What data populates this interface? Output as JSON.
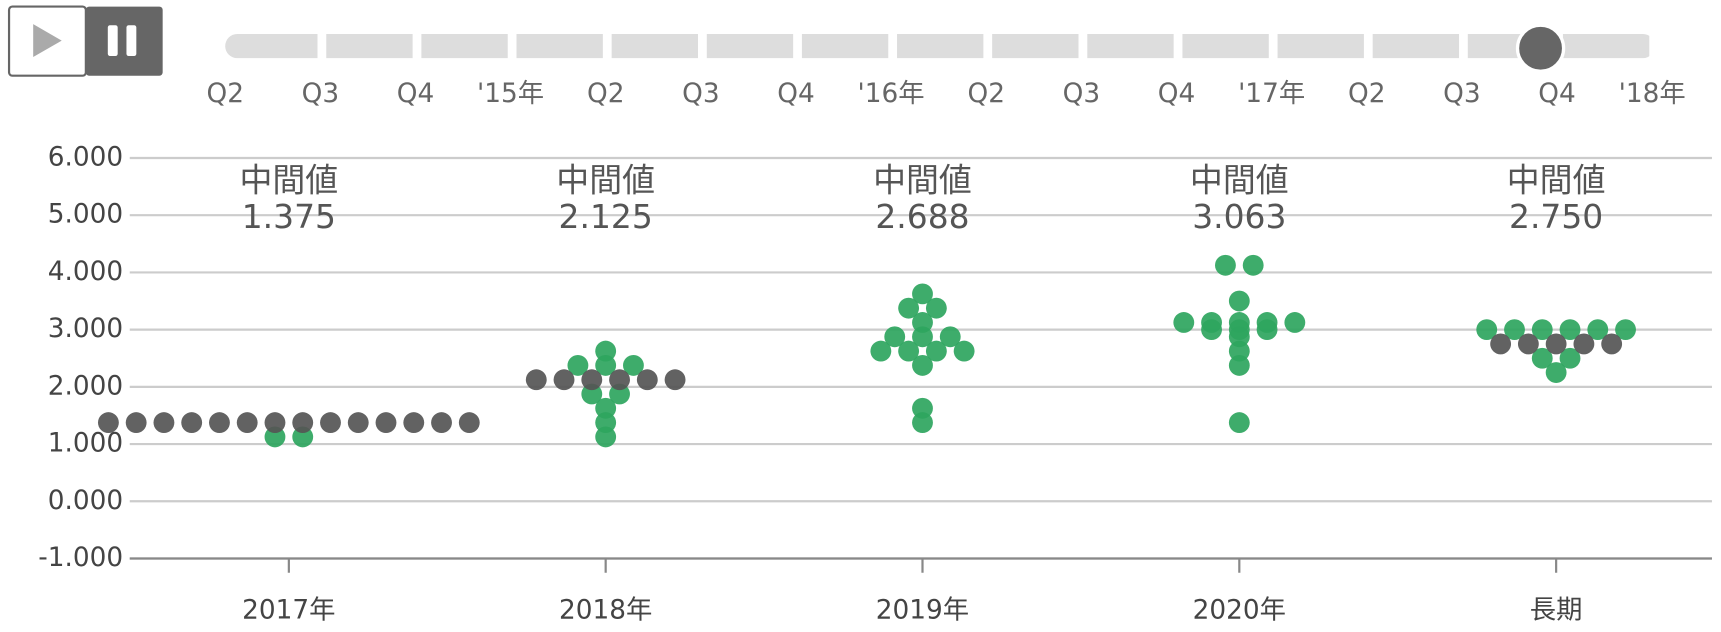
{
  "timeline": {
    "labels": [
      "Q2",
      "Q3",
      "Q4",
      "'15年",
      "Q2",
      "Q3",
      "Q4",
      "'16年",
      "Q2",
      "Q3",
      "Q4",
      "'17年",
      "Q2",
      "Q3",
      "Q4",
      "'18年"
    ],
    "selected_index": 14
  },
  "chart_data": {
    "type": "dot",
    "categories": [
      "2017年",
      "2018年",
      "2019年",
      "2020年",
      "長期"
    ],
    "series": [
      {
        "color": "#2ea55e",
        "values": [
          [
            1.125,
            1.125
          ],
          [
            2.625,
            2.375,
            2.375,
            2.375,
            1.875,
            1.875,
            1.625,
            1.375,
            1.125
          ],
          [
            3.625,
            3.375,
            3.375,
            3.125,
            2.875,
            2.875,
            2.875,
            2.625,
            2.625,
            2.625,
            2.625,
            2.375,
            1.625,
            1.375
          ],
          [
            4.125,
            4.125,
            3.5,
            3.125,
            3.125,
            3.125,
            3.125,
            3.125,
            3,
            3,
            3,
            2.875,
            2.625,
            2.375,
            1.375
          ],
          [
            3,
            3,
            3,
            3,
            3,
            3,
            2.5,
            2.5,
            2.25
          ]
        ]
      },
      {
        "color": "#555555",
        "values": [
          [
            1.375,
            1.375,
            1.375,
            1.375,
            1.375,
            1.375,
            1.375,
            1.375,
            1.375,
            1.375,
            1.375,
            1.375,
            1.375,
            1.375
          ],
          [
            2.125,
            2.125,
            2.125,
            2.125,
            2.125,
            2.125
          ],
          [],
          [],
          [
            2.75,
            2.75,
            2.75,
            2.75,
            2.75
          ]
        ]
      }
    ],
    "median": {
      "label": "中間値",
      "values": [
        1.375,
        2.125,
        2.688,
        3.063,
        2.75
      ],
      "value_labels": [
        "1.375",
        "2.125",
        "2.688",
        "3.063",
        "2.750"
      ]
    },
    "ylim": [
      -1,
      6
    ],
    "yticks": [
      {
        "value": -1,
        "label": "-1.000"
      },
      {
        "value": 0,
        "label": "0.000"
      },
      {
        "value": 1,
        "label": "1.000"
      },
      {
        "value": 2,
        "label": "2.000"
      },
      {
        "value": 3,
        "label": "3.000"
      },
      {
        "value": 4,
        "label": "4.000"
      },
      {
        "value": 5,
        "label": "5.000"
      },
      {
        "value": 6,
        "label": "6.000"
      }
    ],
    "grid": true
  }
}
